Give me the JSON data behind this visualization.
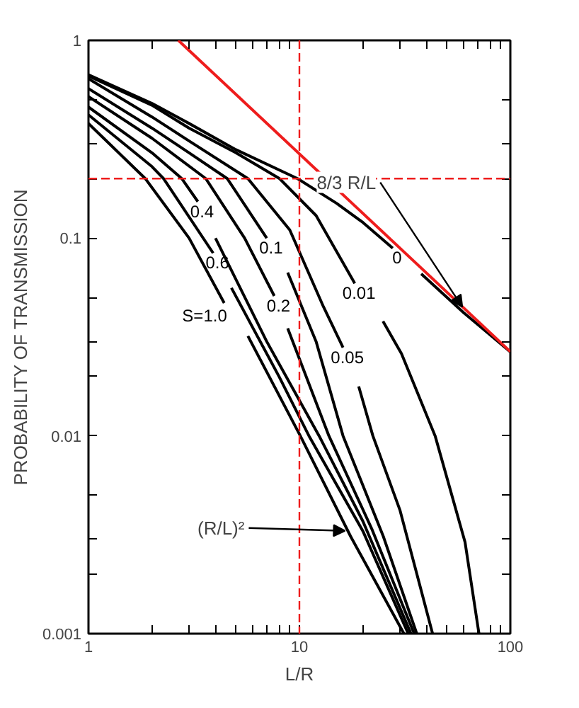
{
  "chart_data": {
    "type": "line",
    "xlabel": "L/R",
    "ylabel": "PROBABILITY OF TRANSMISSION",
    "log": "xy",
    "grid": false,
    "marker": "none",
    "line_style": "solid",
    "xlim": [
      1,
      100
    ],
    "ylim": [
      0.001,
      1
    ],
    "xticks": [
      1,
      {
        "value": 2,
        "label": null
      },
      {
        "value": 3,
        "label": null
      },
      {
        "value": 4,
        "label": null
      },
      {
        "value": 5,
        "label": null
      },
      {
        "value": 6,
        "label": null
      },
      {
        "value": 7,
        "label": null
      },
      {
        "value": 8,
        "label": null
      },
      {
        "value": 9,
        "label": null
      },
      10,
      {
        "value": 20,
        "label": null
      },
      {
        "value": 30,
        "label": null
      },
      {
        "value": 40,
        "label": null
      },
      {
        "value": 50,
        "label": null
      },
      {
        "value": 60,
        "label": null
      },
      {
        "value": 70,
        "label": null
      },
      {
        "value": 80,
        "label": null
      },
      {
        "value": 90,
        "label": null
      },
      100
    ],
    "yticks": [
      0.001,
      {
        "value": 0.002,
        "label": null
      },
      {
        "value": 0.003,
        "label": null
      },
      {
        "value": 0.005,
        "label": null
      },
      0.01,
      {
        "value": 0.02,
        "label": null
      },
      {
        "value": 0.03,
        "label": null
      },
      {
        "value": 0.05,
        "label": null
      },
      0.1,
      {
        "value": 0.2,
        "label": null
      },
      {
        "value": 0.3,
        "label": null
      },
      {
        "value": 0.5,
        "label": null
      },
      1
    ],
    "series": [
      {
        "name": "0",
        "color": "#000000",
        "x": [
          1,
          2,
          3,
          5,
          9.8,
          15,
          20,
          27.7,
          32,
          37.8,
          60,
          100
        ],
        "values": [
          0.67,
          0.48,
          0.38,
          0.28,
          0.2,
          0.15,
          0.12,
          0.089,
          null,
          0.066,
          0.042,
          0.0266
        ]
      },
      {
        "name": "0.01",
        "color": "#000000",
        "x": [
          1,
          2,
          3,
          5,
          8.05,
          12,
          18.3,
          22,
          24.9,
          30.5,
          44,
          61,
          71
        ],
        "values": [
          0.66,
          0.47,
          0.36,
          0.27,
          0.2,
          0.13,
          0.059,
          null,
          0.038,
          0.026,
          0.01,
          0.0029,
          0.001
        ]
      },
      {
        "name": "0.05",
        "color": "#000000",
        "x": [
          1,
          2,
          3,
          5.7,
          9,
          13,
          16.1,
          17.4,
          19.1,
          22.3,
          30,
          42.8
        ],
        "values": [
          0.64,
          0.41,
          0.31,
          0.2,
          0.11,
          0.045,
          0.028,
          null,
          0.0178,
          0.01,
          0.0042,
          0.001
        ]
      },
      {
        "name": "0.1",
        "color": "#000000",
        "x": [
          1,
          2,
          3,
          4.55,
          7.0,
          7.9,
          8.8,
          12,
          16.1,
          25,
          36
        ],
        "values": [
          0.57,
          0.36,
          0.27,
          0.2,
          0.1,
          null,
          0.067,
          0.03,
          0.01,
          0.0031,
          0.001
        ]
      },
      {
        "name": "0.2",
        "color": "#000000",
        "x": [
          1,
          2,
          3.6,
          5.5,
          7.6,
          8.2,
          8.8,
          13.8,
          22,
          35
        ],
        "values": [
          0.52,
          0.32,
          0.2,
          0.1,
          0.051,
          null,
          0.035,
          0.01,
          0.0034,
          0.001
        ]
      },
      {
        "name": "0.4",
        "color": "#000000",
        "x": [
          1,
          2,
          2.77,
          3.3,
          3.6,
          4.0,
          7,
          12.4,
          20,
          33.8
        ],
        "values": [
          0.46,
          0.27,
          0.2,
          0.153,
          null,
          0.1,
          0.03,
          0.01,
          0.0037,
          0.001
        ]
      },
      {
        "name": "0.6",
        "color": "#000000",
        "x": [
          1,
          2,
          2.27,
          3.9,
          4.3,
          4.76,
          8,
          11.1,
          20,
          32.8
        ],
        "values": [
          0.42,
          0.23,
          0.2,
          0.084,
          null,
          0.056,
          0.02,
          0.01,
          0.0033,
          0.001
        ]
      },
      {
        "name": "S=1.0",
        "color": "#000000",
        "x": [
          1,
          1.86,
          3,
          4.4,
          5,
          5.7,
          10.1,
          17.5,
          31.3
        ],
        "values": [
          0.38,
          0.2,
          0.1,
          0.047,
          null,
          0.032,
          0.01,
          0.0031,
          0.001
        ]
      },
      {
        "color": "#ee1c1c",
        "x": [
          2.667,
          100
        ],
        "values": [
          1,
          0.02667
        ]
      }
    ],
    "ref_lines": [
      {
        "axis": "x",
        "value": 10,
        "color": "#ee1c1c",
        "line_style": "dashed"
      },
      {
        "axis": "y",
        "value": 0.2,
        "color": "#ee1c1c",
        "line_style": "dashed"
      }
    ],
    "annotations": [
      {
        "text": "8/3 R/L",
        "x": 63,
        "y": 0.042
      },
      {
        "text": "(R/L)²",
        "x": 17.5,
        "y": 0.0031
      }
    ]
  }
}
